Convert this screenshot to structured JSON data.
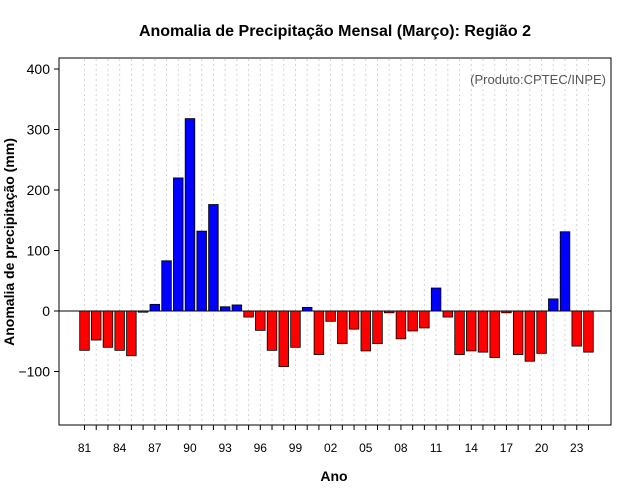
{
  "chart_data": {
    "type": "bar",
    "title": "Anomalia de Precipitação Mensal (Março): Região 2",
    "xlabel": "Ano",
    "ylabel": "Anomalia de precipitação (mm)",
    "source_note": "(Produto:CPTEC/INPE)",
    "ylim": [
      -190,
      420
    ],
    "yticks": [
      -100,
      0,
      100,
      200,
      300,
      400
    ],
    "ytick_labels": [
      "−100",
      "0",
      "100",
      "200",
      "300",
      "400"
    ],
    "years": [
      1981,
      1982,
      1983,
      1984,
      1985,
      1986,
      1987,
      1988,
      1989,
      1990,
      1991,
      1992,
      1993,
      1994,
      1995,
      1996,
      1997,
      1998,
      1999,
      2000,
      2001,
      2002,
      2003,
      2004,
      2005,
      2006,
      2007,
      2008,
      2009,
      2010,
      2011,
      2012,
      2013,
      2014,
      2015,
      2016,
      2017,
      2018,
      2019,
      2020,
      2021,
      2022,
      2023,
      2024
    ],
    "values": [
      -65,
      -48,
      -60,
      -65,
      -74,
      -2,
      11,
      83,
      220,
      318,
      132,
      176,
      7,
      10,
      -10,
      -32,
      -65,
      -92,
      -60,
      6,
      -72,
      -17,
      -54,
      -30,
      -66,
      -54,
      -3,
      -46,
      -33,
      -28,
      38,
      -10,
      -72,
      -66,
      -68,
      -77,
      -3,
      -72,
      -83,
      -70,
      20,
      131,
      -58,
      -68
    ],
    "x_tick_labels": [
      "81",
      "84",
      "87",
      "90",
      "93",
      "96",
      "99",
      "02",
      "05",
      "08",
      "11",
      "14",
      "17",
      "20",
      "23"
    ],
    "x_tick_years": [
      1981,
      1984,
      1987,
      1990,
      1993,
      1996,
      1999,
      2002,
      2005,
      2008,
      2011,
      2014,
      2017,
      2020,
      2023
    ],
    "positive_color": "#0000ff",
    "negative_color": "#ff0000"
  }
}
